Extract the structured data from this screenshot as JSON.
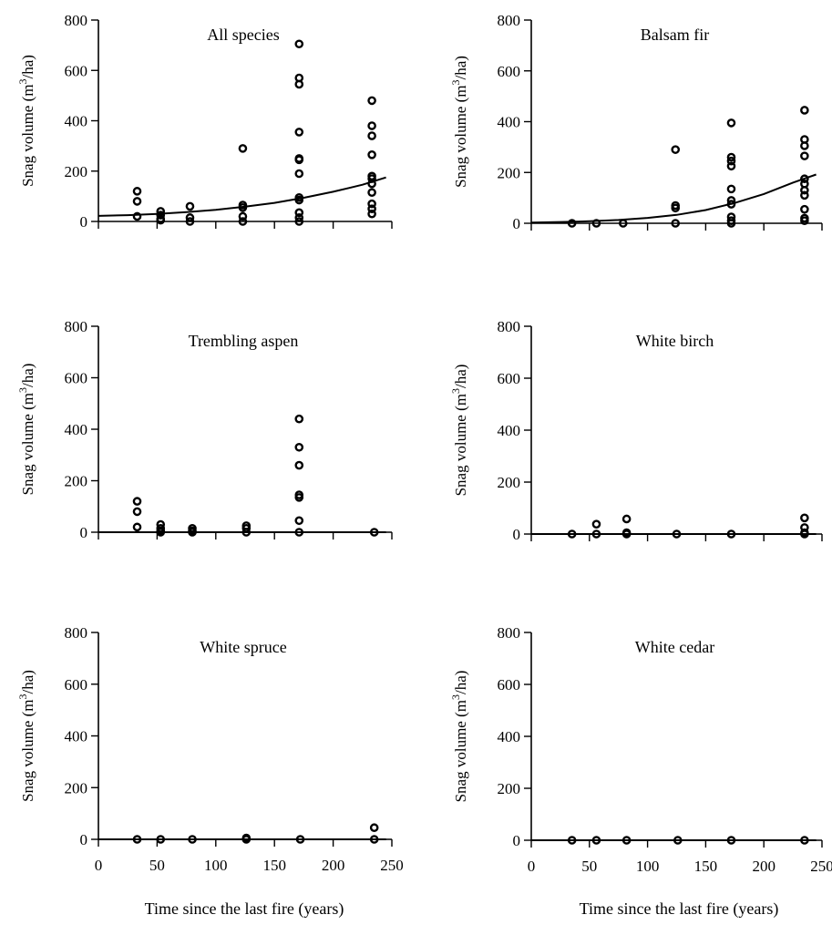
{
  "figure": {
    "x_axis_title": "Time since the last fire (years)"
  },
  "chart_data": [
    {
      "type": "scatter",
      "title": "All species",
      "xlabel": "Time since the last fire (years)",
      "ylabel": "Snag volume (m3/ha)",
      "ylabel_parts": [
        "Snag volume (m",
        "3",
        "/ha)"
      ],
      "xlim": [
        0,
        250
      ],
      "ylim": [
        0,
        800
      ],
      "xticks": [
        0,
        50,
        100,
        150,
        200,
        250
      ],
      "yticks": [
        0,
        200,
        400,
        600,
        800
      ],
      "show_x_tick_labels": false,
      "grid": false,
      "points": [
        [
          33,
          120
        ],
        [
          33,
          80
        ],
        [
          33,
          20
        ],
        [
          53,
          40
        ],
        [
          53,
          25
        ],
        [
          53,
          10
        ],
        [
          53,
          5
        ],
        [
          78,
          60
        ],
        [
          78,
          15
        ],
        [
          78,
          0
        ],
        [
          123,
          290
        ],
        [
          123,
          65
        ],
        [
          123,
          55
        ],
        [
          123,
          20
        ],
        [
          123,
          0
        ],
        [
          171,
          705
        ],
        [
          171,
          570
        ],
        [
          171,
          545
        ],
        [
          171,
          355
        ],
        [
          171,
          250
        ],
        [
          171,
          245
        ],
        [
          171,
          190
        ],
        [
          171,
          95
        ],
        [
          171,
          85
        ],
        [
          171,
          35
        ],
        [
          171,
          15
        ],
        [
          171,
          0
        ],
        [
          233,
          480
        ],
        [
          233,
          380
        ],
        [
          233,
          340
        ],
        [
          233,
          265
        ],
        [
          233,
          180
        ],
        [
          233,
          170
        ],
        [
          233,
          150
        ],
        [
          233,
          115
        ],
        [
          233,
          70
        ],
        [
          233,
          50
        ],
        [
          233,
          30
        ]
      ],
      "fit": [
        [
          0,
          22
        ],
        [
          25,
          25
        ],
        [
          50,
          30
        ],
        [
          75,
          37
        ],
        [
          100,
          46
        ],
        [
          125,
          59
        ],
        [
          150,
          74
        ],
        [
          175,
          94
        ],
        [
          200,
          118
        ],
        [
          225,
          146
        ],
        [
          245,
          175
        ]
      ]
    },
    {
      "type": "scatter",
      "title": "Balsam fir",
      "xlabel": "Time since the last fire (years)",
      "ylabel": "Snag volume (m3/ha)",
      "ylabel_parts": [
        "Snag volume (m",
        "3",
        "/ha)"
      ],
      "xlim": [
        0,
        250
      ],
      "ylim": [
        0,
        800
      ],
      "xticks": [
        0,
        50,
        100,
        150,
        200,
        250
      ],
      "yticks": [
        0,
        200,
        400,
        600,
        800
      ],
      "show_x_tick_labels": false,
      "grid": false,
      "points": [
        [
          35,
          0
        ],
        [
          56,
          0
        ],
        [
          79,
          0
        ],
        [
          124,
          290
        ],
        [
          124,
          70
        ],
        [
          124,
          60
        ],
        [
          124,
          0
        ],
        [
          172,
          395
        ],
        [
          172,
          260
        ],
        [
          172,
          245
        ],
        [
          172,
          225
        ],
        [
          172,
          135
        ],
        [
          172,
          90
        ],
        [
          172,
          75
        ],
        [
          172,
          25
        ],
        [
          172,
          10
        ],
        [
          172,
          0
        ],
        [
          235,
          445
        ],
        [
          235,
          330
        ],
        [
          235,
          305
        ],
        [
          235,
          265
        ],
        [
          235,
          175
        ],
        [
          235,
          155
        ],
        [
          235,
          130
        ],
        [
          235,
          110
        ],
        [
          235,
          55
        ],
        [
          235,
          20
        ],
        [
          235,
          10
        ]
      ],
      "fit": [
        [
          0,
          3
        ],
        [
          25,
          5
        ],
        [
          50,
          8
        ],
        [
          75,
          13
        ],
        [
          100,
          21
        ],
        [
          125,
          33
        ],
        [
          150,
          52
        ],
        [
          175,
          80
        ],
        [
          200,
          115
        ],
        [
          225,
          160
        ],
        [
          245,
          192
        ]
      ]
    },
    {
      "type": "scatter",
      "title": "Trembling aspen",
      "xlabel": "Time since the last fire (years)",
      "ylabel": "Snag volume (m3/ha)",
      "ylabel_parts": [
        "Snag volume (m",
        "3",
        "/ha)"
      ],
      "xlim": [
        0,
        250
      ],
      "ylim": [
        0,
        800
      ],
      "xticks": [
        0,
        50,
        100,
        150,
        200,
        250
      ],
      "yticks": [
        0,
        200,
        400,
        600,
        800
      ],
      "show_x_tick_labels": false,
      "grid": false,
      "points": [
        [
          33,
          120
        ],
        [
          33,
          80
        ],
        [
          33,
          20
        ],
        [
          53,
          30
        ],
        [
          53,
          15
        ],
        [
          53,
          5
        ],
        [
          53,
          0
        ],
        [
          80,
          15
        ],
        [
          80,
          5
        ],
        [
          80,
          0
        ],
        [
          126,
          25
        ],
        [
          126,
          15
        ],
        [
          126,
          0
        ],
        [
          171,
          440
        ],
        [
          171,
          330
        ],
        [
          171,
          260
        ],
        [
          171,
          145
        ],
        [
          171,
          135
        ],
        [
          171,
          45
        ],
        [
          171,
          0
        ],
        [
          235,
          0
        ]
      ],
      "fit": [
        [
          0,
          0
        ],
        [
          245,
          0
        ]
      ]
    },
    {
      "type": "scatter",
      "title": "White birch",
      "xlabel": "Time since the last fire (years)",
      "ylabel": "Snag volume (m3/ha)",
      "ylabel_parts": [
        "Snag volume (m",
        "3",
        "/ha)"
      ],
      "xlim": [
        0,
        250
      ],
      "ylim": [
        0,
        800
      ],
      "xticks": [
        0,
        50,
        100,
        150,
        200,
        250
      ],
      "yticks": [
        0,
        200,
        400,
        600,
        800
      ],
      "show_x_tick_labels": false,
      "grid": false,
      "points": [
        [
          35,
          0
        ],
        [
          56,
          38
        ],
        [
          56,
          0
        ],
        [
          82,
          58
        ],
        [
          82,
          5
        ],
        [
          82,
          0
        ],
        [
          125,
          0
        ],
        [
          172,
          0
        ],
        [
          235,
          62
        ],
        [
          235,
          25
        ],
        [
          235,
          5
        ],
        [
          235,
          0
        ]
      ],
      "fit": [
        [
          0,
          0
        ],
        [
          245,
          0
        ]
      ]
    },
    {
      "type": "scatter",
      "title": "White spruce",
      "xlabel": "Time since the last fire (years)",
      "ylabel": "Snag volume (m3/ha)",
      "ylabel_parts": [
        "Snag volume (m",
        "3",
        "/ha)"
      ],
      "xlim": [
        0,
        250
      ],
      "ylim": [
        0,
        800
      ],
      "xticks": [
        0,
        50,
        100,
        150,
        200,
        250
      ],
      "yticks": [
        0,
        200,
        400,
        600,
        800
      ],
      "show_x_tick_labels": true,
      "grid": false,
      "points": [
        [
          33,
          0
        ],
        [
          53,
          0
        ],
        [
          80,
          0
        ],
        [
          126,
          5
        ],
        [
          126,
          0
        ],
        [
          172,
          0
        ],
        [
          235,
          45
        ],
        [
          235,
          0
        ]
      ],
      "fit": [
        [
          0,
          0
        ],
        [
          245,
          0
        ]
      ]
    },
    {
      "type": "scatter",
      "title": "White cedar",
      "xlabel": "Time since the last fire (years)",
      "ylabel": "Snag volume (m3/ha)",
      "ylabel_parts": [
        "Snag volume (m",
        "3",
        "/ha)"
      ],
      "xlim": [
        0,
        250
      ],
      "ylim": [
        0,
        800
      ],
      "xticks": [
        0,
        50,
        100,
        150,
        200,
        250
      ],
      "yticks": [
        0,
        200,
        400,
        600,
        800
      ],
      "show_x_tick_labels": true,
      "grid": false,
      "points": [
        [
          35,
          0
        ],
        [
          56,
          0
        ],
        [
          82,
          0
        ],
        [
          126,
          0
        ],
        [
          172,
          0
        ],
        [
          235,
          0
        ]
      ],
      "fit": [
        [
          0,
          0
        ],
        [
          245,
          0
        ]
      ]
    }
  ]
}
